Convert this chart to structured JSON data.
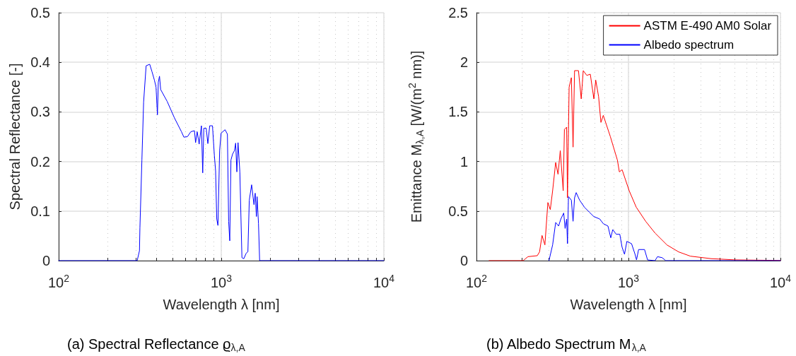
{
  "chart_data": [
    {
      "type": "line",
      "title": "(a) Spectral Reflectance ϱ$_{λ,A}$",
      "xlabel": "Wavelength λ [nm]",
      "ylabel": "Spectral Reflectance [-]",
      "log": "x",
      "grid": true,
      "marker": "none",
      "line_style": "solid",
      "xlim": [
        100,
        10000
      ],
      "ylim": [
        0,
        0.5
      ],
      "xticks": [
        {
          "value": 100,
          "label": "10$^{2}$"
        },
        {
          "value": 200,
          "label": null
        },
        {
          "value": 300,
          "label": null
        },
        {
          "value": 400,
          "label": null
        },
        {
          "value": 500,
          "label": null
        },
        {
          "value": 600,
          "label": null
        },
        {
          "value": 700,
          "label": null
        },
        {
          "value": 800,
          "label": null
        },
        {
          "value": 900,
          "label": null
        },
        {
          "value": 1000,
          "label": "10$^{3}$"
        },
        {
          "value": 2000,
          "label": null
        },
        {
          "value": 3000,
          "label": null
        },
        {
          "value": 4000,
          "label": null
        },
        {
          "value": 5000,
          "label": null
        },
        {
          "value": 6000,
          "label": null
        },
        {
          "value": 7000,
          "label": null
        },
        {
          "value": 8000,
          "label": null
        },
        {
          "value": 9000,
          "label": null
        },
        {
          "value": 10000,
          "label": "10$^{4}$"
        }
      ],
      "yticks": [
        0,
        0.1,
        0.2,
        0.3,
        0.4,
        0.5
      ],
      "series": [
        {
          "color": "#0000ff",
          "x": [
            100,
            304,
            314,
            316,
            325,
            333,
            345,
            363,
            375,
            388,
            397,
            405,
            410,
            417,
            424,
            465,
            515,
            569,
            589,
            619,
            650,
            684,
            695,
            711,
            731,
            755,
            769,
            781,
            808,
            827,
            849,
            883,
            907,
            923,
            938,
            954,
            977,
            997,
            1055,
            1091,
            1110,
            1128,
            1147,
            1174,
            1206,
            1226,
            1247,
            1268,
            1301,
            1340,
            1377,
            1423,
            1458,
            1487,
            1537,
            1589,
            1617,
            1645,
            1661,
            1694,
            1722,
            10000
          ],
          "values": [
            0,
            0,
            0.02,
            0.066,
            0.203,
            0.32,
            0.393,
            0.396,
            0.381,
            0.364,
            0.35,
            0.294,
            0.36,
            0.372,
            0.345,
            0.321,
            0.288,
            0.26,
            0.249,
            0.25,
            0.26,
            0.262,
            0.238,
            0.26,
            0.235,
            0.272,
            0.177,
            0.267,
            0.267,
            0.236,
            0.272,
            0.272,
            0.212,
            0.181,
            0.084,
            0.071,
            0.222,
            0.257,
            0.264,
            0.255,
            0.079,
            0.04,
            0.203,
            0.215,
            0.222,
            0.237,
            0.179,
            0.238,
            0.179,
            0.006,
            0.004,
            0.015,
            0.018,
            0.122,
            0.153,
            0.113,
            0.136,
            0.089,
            0.129,
            0.075,
            0,
            0
          ]
        }
      ]
    },
    {
      "type": "line",
      "title": "(b) Albedo Spectrum M$_{λ,A}$",
      "xlabel": "Wavelength λ [nm]",
      "ylabel": "Emittance M$_{λ,A}$ [W/(m$^{2}$ nm)]",
      "log": "x",
      "grid": true,
      "marker": "none",
      "line_style": "solid",
      "legend": "top right",
      "xlim": [
        100,
        10000
      ],
      "ylim": [
        0,
        2.5
      ],
      "xticks": [
        {
          "value": 100,
          "label": "10$^{2}$"
        },
        {
          "value": 200,
          "label": null
        },
        {
          "value": 300,
          "label": null
        },
        {
          "value": 400,
          "label": null
        },
        {
          "value": 500,
          "label": null
        },
        {
          "value": 600,
          "label": null
        },
        {
          "value": 700,
          "label": null
        },
        {
          "value": 800,
          "label": null
        },
        {
          "value": 900,
          "label": null
        },
        {
          "value": 1000,
          "label": "10$^{3}$"
        },
        {
          "value": 2000,
          "label": null
        },
        {
          "value": 3000,
          "label": null
        },
        {
          "value": 4000,
          "label": null
        },
        {
          "value": 5000,
          "label": null
        },
        {
          "value": 6000,
          "label": null
        },
        {
          "value": 7000,
          "label": null
        },
        {
          "value": 8000,
          "label": null
        },
        {
          "value": 9000,
          "label": null
        },
        {
          "value": 10000,
          "label": "10$^{4}$"
        }
      ],
      "yticks": [
        0,
        0.5,
        1,
        1.5,
        2,
        2.5
      ],
      "series": [
        {
          "name": "ASTM E-490 AM0 Solar",
          "color": "#ff0000",
          "x": [
            121,
            203,
            218,
            251,
            260,
            270,
            282,
            295,
            306,
            317,
            332,
            344,
            356,
            372,
            379,
            392,
            397,
            407,
            421,
            432,
            442,
            469,
            489,
            504,
            532,
            561,
            592,
            609,
            636,
            659,
            683,
            760,
            846,
            871,
            908,
            1011,
            1125,
            1297,
            1496,
            1790,
            2140,
            2557,
            3500,
            5000,
            10000
          ],
          "values": [
            0,
            0,
            0.04,
            0.05,
            0.088,
            0.254,
            0.159,
            0.586,
            0.515,
            0.705,
            0.99,
            0.871,
            1.109,
            0.705,
            1.323,
            1.346,
            0.634,
            1.75,
            1.845,
            1.145,
            1.916,
            1.916,
            1.631,
            1.916,
            1.868,
            1.88,
            1.631,
            1.821,
            1.655,
            1.394,
            1.465,
            1.251,
            1.013,
            0.895,
            0.917,
            0.705,
            0.539,
            0.397,
            0.278,
            0.159,
            0.088,
            0.045,
            0.02,
            0.008,
            0.002
          ]
        },
        {
          "name": "Albedo spectrum",
          "color": "#0000ff",
          "x": [
            300,
            317,
            332,
            347,
            359,
            375,
            383,
            392,
            397,
            403,
            421,
            432,
            442,
            453,
            477,
            513,
            551,
            592,
            647,
            683,
            733,
            765,
            788,
            831,
            877,
            908,
            942,
            976,
            1048,
            1105,
            1130,
            1166,
            1276,
            1336,
            1496,
            1552,
            1667,
            1758,
            10000
          ],
          "values": [
            0,
            0.159,
            0.385,
            0.349,
            0.42,
            0.48,
            0.325,
            0.42,
            0.171,
            0.646,
            0.61,
            0.397,
            0.634,
            0.686,
            0.61,
            0.539,
            0.491,
            0.444,
            0.42,
            0.373,
            0.349,
            0.23,
            0.313,
            0.266,
            0.266,
            0.135,
            0.064,
            0.194,
            0.171,
            0.064,
            0.007,
            0.112,
            0.112,
            0.007,
            0,
            0.04,
            0.03,
            0,
            0
          ]
        }
      ]
    }
  ]
}
